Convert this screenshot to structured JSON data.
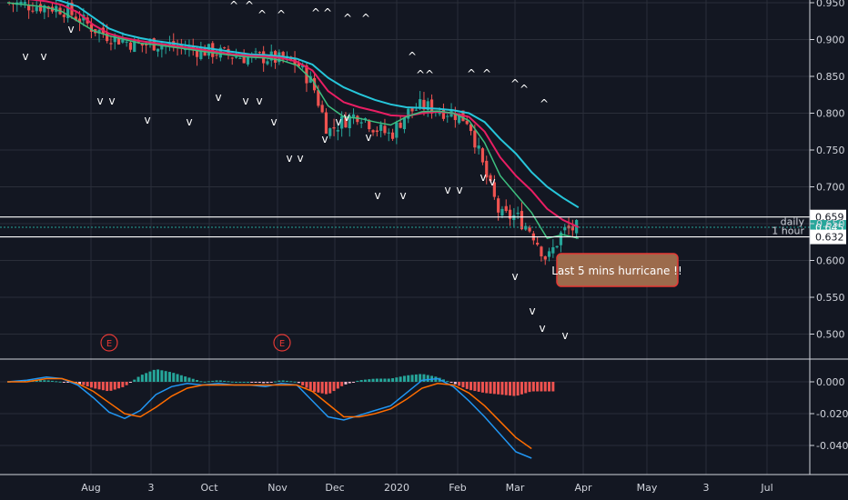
{
  "chart_data": [
    {
      "type": "candlestick",
      "title": "",
      "x_labels": [
        "Aug",
        "3",
        "Oct",
        "Nov",
        "Dec",
        "2020",
        "Feb",
        "Mar",
        "Apr",
        "May",
        "3",
        "Jul"
      ],
      "ylim": [
        0.47,
        0.955
      ],
      "y_ticks": [
        0.95,
        0.9,
        0.85,
        0.8,
        0.75,
        0.7,
        0.65,
        0.6,
        0.55,
        0.5
      ],
      "grid": true,
      "close_path": [
        [
          0,
          0.95
        ],
        [
          5,
          0.947
        ],
        [
          10,
          0.945
        ],
        [
          14,
          0.942
        ],
        [
          18,
          0.93
        ],
        [
          22,
          0.915
        ],
        [
          26,
          0.905
        ],
        [
          30,
          0.898
        ],
        [
          34,
          0.892
        ],
        [
          38,
          0.895
        ],
        [
          42,
          0.89
        ],
        [
          46,
          0.888
        ],
        [
          50,
          0.885
        ],
        [
          54,
          0.882
        ],
        [
          58,
          0.878
        ],
        [
          62,
          0.875
        ],
        [
          66,
          0.876
        ],
        [
          70,
          0.872
        ],
        [
          74,
          0.868
        ],
        [
          78,
          0.84
        ],
        [
          82,
          0.775
        ],
        [
          86,
          0.79
        ],
        [
          90,
          0.8
        ],
        [
          94,
          0.78
        ],
        [
          98,
          0.77
        ],
        [
          102,
          0.8
        ],
        [
          106,
          0.81
        ],
        [
          110,
          0.805
        ],
        [
          114,
          0.8
        ],
        [
          118,
          0.79
        ],
        [
          122,
          0.72
        ],
        [
          126,
          0.66
        ],
        [
          130,
          0.66
        ],
        [
          134,
          0.64
        ],
        [
          138,
          0.6
        ],
        [
          142,
          0.64
        ],
        [
          146,
          0.645
        ]
      ],
      "ma_fast": [
        [
          0,
          0.95
        ],
        [
          5,
          0.947
        ],
        [
          10,
          0.944
        ],
        [
          14,
          0.938
        ],
        [
          18,
          0.925
        ],
        [
          22,
          0.912
        ],
        [
          26,
          0.905
        ],
        [
          30,
          0.9
        ],
        [
          34,
          0.895
        ],
        [
          38,
          0.893
        ],
        [
          42,
          0.89
        ],
        [
          46,
          0.887
        ],
        [
          50,
          0.884
        ],
        [
          54,
          0.881
        ],
        [
          58,
          0.878
        ],
        [
          62,
          0.876
        ],
        [
          66,
          0.875
        ],
        [
          70,
          0.872
        ],
        [
          74,
          0.865
        ],
        [
          78,
          0.845
        ],
        [
          82,
          0.81
        ],
        [
          86,
          0.795
        ],
        [
          90,
          0.793
        ],
        [
          94,
          0.788
        ],
        [
          98,
          0.784
        ],
        [
          102,
          0.795
        ],
        [
          106,
          0.802
        ],
        [
          110,
          0.803
        ],
        [
          114,
          0.8
        ],
        [
          118,
          0.79
        ],
        [
          122,
          0.76
        ],
        [
          126,
          0.715
        ],
        [
          130,
          0.69
        ],
        [
          134,
          0.665
        ],
        [
          138,
          0.63
        ],
        [
          142,
          0.635
        ],
        [
          146,
          0.63
        ]
      ],
      "ma_mid": [
        [
          5,
          0.955
        ],
        [
          10,
          0.952
        ],
        [
          14,
          0.947
        ],
        [
          18,
          0.937
        ],
        [
          22,
          0.92
        ],
        [
          26,
          0.908
        ],
        [
          30,
          0.902
        ],
        [
          34,
          0.898
        ],
        [
          38,
          0.895
        ],
        [
          42,
          0.892
        ],
        [
          46,
          0.889
        ],
        [
          50,
          0.886
        ],
        [
          54,
          0.883
        ],
        [
          58,
          0.88
        ],
        [
          62,
          0.878
        ],
        [
          66,
          0.877
        ],
        [
          70,
          0.875
        ],
        [
          74,
          0.87
        ],
        [
          78,
          0.858
        ],
        [
          82,
          0.83
        ],
        [
          86,
          0.815
        ],
        [
          90,
          0.808
        ],
        [
          94,
          0.803
        ],
        [
          98,
          0.797
        ],
        [
          102,
          0.796
        ],
        [
          106,
          0.8
        ],
        [
          110,
          0.802
        ],
        [
          114,
          0.8
        ],
        [
          118,
          0.795
        ],
        [
          122,
          0.775
        ],
        [
          126,
          0.74
        ],
        [
          130,
          0.715
        ],
        [
          134,
          0.695
        ],
        [
          138,
          0.67
        ],
        [
          142,
          0.655
        ],
        [
          146,
          0.645
        ]
      ],
      "ma_slow": [
        [
          12,
          0.955
        ],
        [
          14,
          0.952
        ],
        [
          18,
          0.945
        ],
        [
          22,
          0.93
        ],
        [
          26,
          0.915
        ],
        [
          30,
          0.907
        ],
        [
          34,
          0.902
        ],
        [
          38,
          0.898
        ],
        [
          42,
          0.895
        ],
        [
          46,
          0.892
        ],
        [
          50,
          0.889
        ],
        [
          54,
          0.886
        ],
        [
          58,
          0.883
        ],
        [
          62,
          0.88
        ],
        [
          66,
          0.879
        ],
        [
          70,
          0.877
        ],
        [
          74,
          0.874
        ],
        [
          78,
          0.866
        ],
        [
          82,
          0.848
        ],
        [
          86,
          0.835
        ],
        [
          90,
          0.826
        ],
        [
          94,
          0.818
        ],
        [
          98,
          0.812
        ],
        [
          102,
          0.808
        ],
        [
          106,
          0.807
        ],
        [
          110,
          0.806
        ],
        [
          114,
          0.804
        ],
        [
          118,
          0.8
        ],
        [
          122,
          0.788
        ],
        [
          126,
          0.765
        ],
        [
          130,
          0.745
        ],
        [
          134,
          0.72
        ],
        [
          138,
          0.7
        ],
        [
          142,
          0.685
        ],
        [
          146,
          0.672
        ]
      ],
      "horizontal_levels": [
        {
          "value": 0.659,
          "label": "0.659",
          "color": "#ffffff"
        },
        {
          "value": 0.645,
          "label": "0.645",
          "color": "#26a69a"
        },
        {
          "value": 0.632,
          "label": "0.632",
          "color": "#ffffff"
        }
      ],
      "level_labels": [
        "daily",
        "1 hour"
      ],
      "annotation": "Last 5 mins hurricane !!",
      "earnings_markers": [
        "E",
        "E"
      ],
      "colors": {
        "up": "#26a69a",
        "down": "#ef5350",
        "ma_fast": "#3dbf7f",
        "ma_mid": "#e91e63",
        "ma_slow": "#26c6da"
      }
    },
    {
      "type": "histogram",
      "title": "",
      "ylim": [
        -0.05,
        0.012
      ],
      "y_ticks": [
        0.0,
        -0.02,
        -0.04
      ],
      "series": [
        {
          "values": [
            [
              0,
              0.0
            ],
            [
              5,
              0.001
            ],
            [
              10,
              0.003
            ],
            [
              14,
              0.002
            ],
            [
              18,
              -0.002
            ],
            [
              22,
              -0.01
            ],
            [
              26,
              -0.019
            ],
            [
              30,
              -0.023
            ],
            [
              34,
              -0.018
            ],
            [
              38,
              -0.008
            ],
            [
              42,
              -0.003
            ],
            [
              46,
              -0.001
            ],
            [
              50,
              -0.002
            ],
            [
              54,
              -0.001
            ],
            [
              58,
              -0.002
            ],
            [
              62,
              -0.002
            ],
            [
              66,
              -0.003
            ],
            [
              70,
              -0.001
            ],
            [
              74,
              -0.002
            ],
            [
              78,
              -0.012
            ],
            [
              82,
              -0.022
            ],
            [
              86,
              -0.024
            ],
            [
              90,
              -0.021
            ],
            [
              94,
              -0.018
            ],
            [
              98,
              -0.015
            ],
            [
              102,
              -0.007
            ],
            [
              106,
              0.001
            ],
            [
              110,
              0.002
            ],
            [
              114,
              -0.003
            ],
            [
              118,
              -0.012
            ],
            [
              122,
              -0.022
            ],
            [
              126,
              -0.033
            ],
            [
              130,
              -0.044
            ],
            [
              134,
              -0.048
            ]
          ]
        },
        {
          "values": [
            [
              0,
              0.0
            ],
            [
              5,
              0.0
            ],
            [
              10,
              0.002
            ],
            [
              14,
              0.002
            ],
            [
              18,
              -0.001
            ],
            [
              22,
              -0.006
            ],
            [
              26,
              -0.013
            ],
            [
              30,
              -0.02
            ],
            [
              34,
              -0.022
            ],
            [
              38,
              -0.016
            ],
            [
              42,
              -0.009
            ],
            [
              46,
              -0.004
            ],
            [
              50,
              -0.002
            ],
            [
              54,
              -0.002
            ],
            [
              58,
              -0.002
            ],
            [
              62,
              -0.002
            ],
            [
              66,
              -0.002
            ],
            [
              70,
              -0.002
            ],
            [
              74,
              -0.002
            ],
            [
              78,
              -0.006
            ],
            [
              82,
              -0.014
            ],
            [
              86,
              -0.022
            ],
            [
              90,
              -0.022
            ],
            [
              94,
              -0.02
            ],
            [
              98,
              -0.017
            ],
            [
              102,
              -0.011
            ],
            [
              106,
              -0.004
            ],
            [
              110,
              -0.001
            ],
            [
              114,
              -0.002
            ],
            [
              118,
              -0.007
            ],
            [
              122,
              -0.015
            ],
            [
              126,
              -0.025
            ],
            [
              130,
              -0.035
            ],
            [
              134,
              -0.042
            ]
          ]
        }
      ],
      "colors": {
        "macd": "#2196f3",
        "signal": "#ff6d00",
        "hist_up": "#26a69a",
        "hist_down": "#ef5350",
        "hist_pale": "#f8bbd0"
      }
    }
  ]
}
